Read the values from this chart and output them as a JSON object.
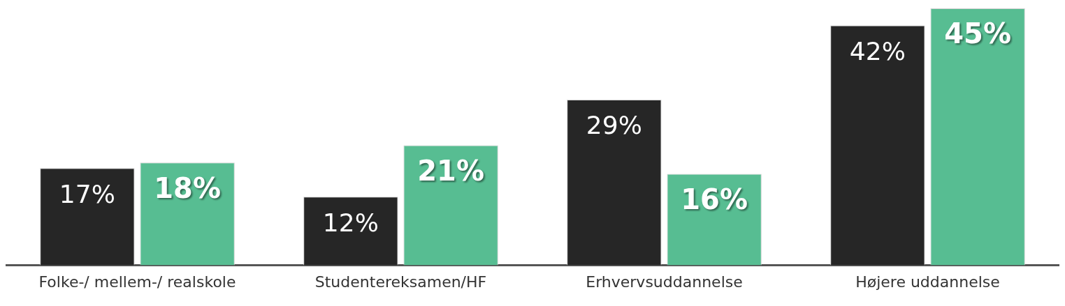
{
  "chart_data": {
    "type": "bar",
    "categories": [
      "Folke-/ mellem-/ realskole",
      "Studentereksamen/HF",
      "Erhvervsuddannelse",
      "Højere uddannelse"
    ],
    "series": [
      {
        "color": "#262626",
        "values": [
          17,
          12,
          29,
          42
        ],
        "value_labels": [
          "17%",
          "12%",
          "29%",
          "42%"
        ]
      },
      {
        "color": "#57bd92",
        "values": [
          18,
          21,
          16,
          45
        ],
        "value_labels": [
          "18%",
          "21%",
          "16%",
          "45%"
        ]
      }
    ],
    "grid": false,
    "legend": false
  }
}
